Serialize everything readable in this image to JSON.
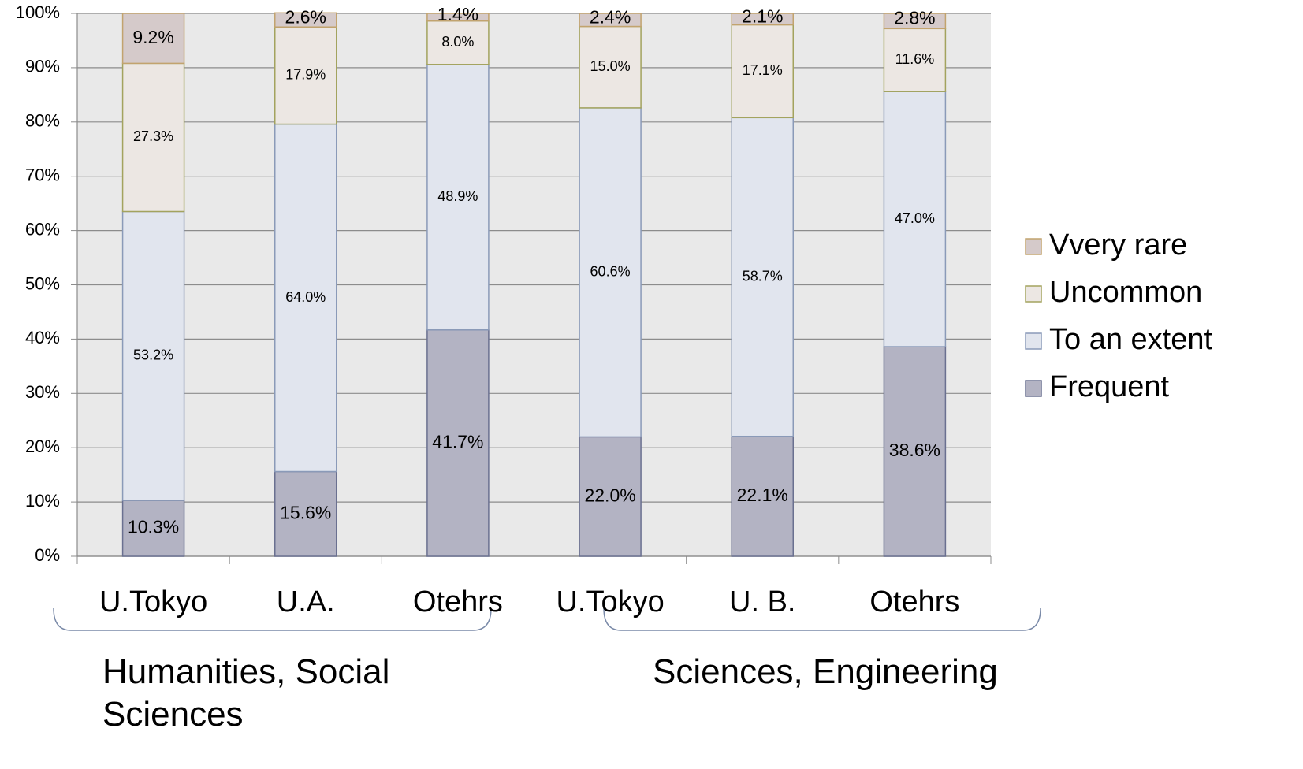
{
  "chart_data": {
    "type": "stacked_bar",
    "categories": [
      "U.Tokyo",
      "U.A.",
      "Otehrs",
      "U.Tokyo",
      "U. B.",
      "Otehrs"
    ],
    "groups": [
      {
        "label": "Humanities, Social Sciences"
      },
      {
        "label": "Sciences, Engineering"
      }
    ],
    "series": [
      {
        "name": "Frequent",
        "color": "#b3b3c3",
        "stroke": "#6a7090",
        "values": [
          10.3,
          15.6,
          41.7,
          22.0,
          22.1,
          38.6
        ],
        "value_labels": [
          "10.3%",
          "15.6%",
          "41.7%",
          "22.0%",
          "22.1%",
          "38.6%"
        ]
      },
      {
        "name": "To an extent",
        "color": "#e1e5ee",
        "stroke": "#8a9ab8",
        "values": [
          53.2,
          64.0,
          48.9,
          60.6,
          58.7,
          47.0
        ],
        "value_labels": [
          "53.2%",
          "64.0%",
          "48.9%",
          "60.6%",
          "58.7%",
          "47.0%"
        ]
      },
      {
        "name": "Uncommon",
        "color": "#ece7e3",
        "stroke": "#a3a35e",
        "values": [
          27.3,
          17.9,
          8.0,
          15.0,
          17.1,
          11.6
        ],
        "value_labels": [
          "27.3%",
          "17.9%",
          "8.0%",
          "15.0%",
          "17.1%",
          "11.6%"
        ]
      },
      {
        "name": "Vvery rare",
        "color": "#d5caca",
        "stroke": "#c2a36e",
        "values": [
          9.2,
          2.6,
          1.4,
          2.4,
          2.1,
          2.8
        ],
        "value_labels": [
          "9.2%",
          "2.6%",
          "1.4%",
          "2.4%",
          "2.1%",
          "2.8%"
        ]
      }
    ],
    "ylim": [
      0,
      100
    ],
    "yticks": [
      {
        "value": 0,
        "label": "0%"
      },
      {
        "value": 10,
        "label": "10%"
      },
      {
        "value": 20,
        "label": "20%"
      },
      {
        "value": 30,
        "label": "30%"
      },
      {
        "value": 40,
        "label": "40%"
      },
      {
        "value": 50,
        "label": "50%"
      },
      {
        "value": 60,
        "label": "60%"
      },
      {
        "value": 70,
        "label": "70%"
      },
      {
        "value": 80,
        "label": "80%"
      },
      {
        "value": 90,
        "label": "90%"
      },
      {
        "value": 100,
        "label": "100%"
      }
    ],
    "grid": true,
    "legend": "right"
  }
}
